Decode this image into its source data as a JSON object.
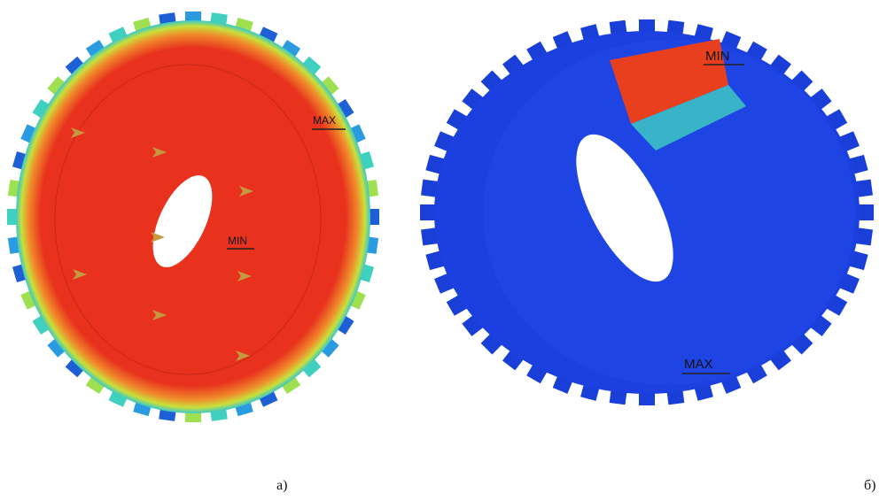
{
  "panels": [
    {
      "caption": "а)",
      "annotations": [
        "MAX",
        "MIN"
      ]
    },
    {
      "caption": "б)",
      "annotations": [
        "MIN",
        "MAX"
      ]
    }
  ]
}
